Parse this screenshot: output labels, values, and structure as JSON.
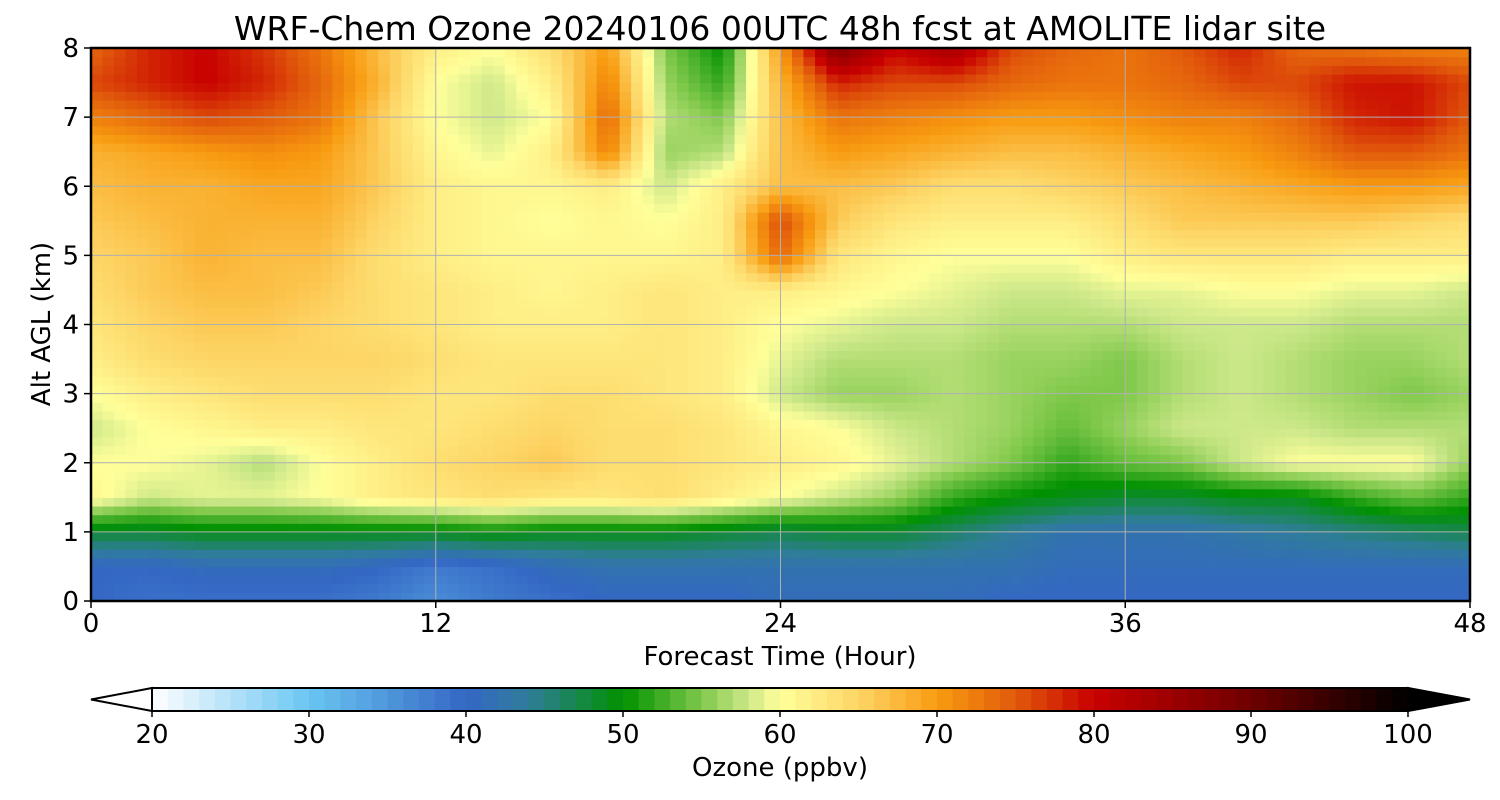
{
  "chart_data": {
    "type": "heatmap",
    "title": "WRF-Chem Ozone  20240106 00UTC 48h fcst at AMOLITE lidar site",
    "xlabel": "Forecast Time (Hour)",
    "ylabel": "Alt AGL (km)",
    "xlim": [
      0,
      48
    ],
    "ylim": [
      0,
      8
    ],
    "x_ticks": [
      0,
      12,
      24,
      36,
      48
    ],
    "y_ticks": [
      0,
      1,
      2,
      3,
      4,
      5,
      6,
      7,
      8
    ],
    "grid": true,
    "colorbar": {
      "label": "Ozone  (ppbv)",
      "range": [
        20,
        100
      ],
      "ticks": [
        20,
        30,
        40,
        50,
        60,
        70,
        80,
        90,
        100
      ],
      "extend": "both",
      "stops": [
        [
          20,
          "#ffffff"
        ],
        [
          30,
          "#6ac6f2"
        ],
        [
          40,
          "#3467c4"
        ],
        [
          44,
          "#2f7d9a"
        ],
        [
          50,
          "#009100"
        ],
        [
          55,
          "#7fc84a"
        ],
        [
          58,
          "#cde88a"
        ],
        [
          60,
          "#ffff9a"
        ],
        [
          65,
          "#fdd566"
        ],
        [
          70,
          "#f89b10"
        ],
        [
          75,
          "#e15a0b"
        ],
        [
          80,
          "#c80000"
        ],
        [
          90,
          "#6e0000"
        ],
        [
          100,
          "#000000"
        ]
      ]
    },
    "hours": [
      0,
      2,
      4,
      6,
      8,
      10,
      12,
      14,
      16,
      18,
      20,
      22,
      24,
      26,
      28,
      30,
      32,
      34,
      36,
      38,
      40,
      42,
      44,
      46,
      48
    ],
    "altitudes_km": [
      0,
      0.5,
      1,
      1.5,
      2,
      2.5,
      3,
      3.5,
      4,
      4.5,
      5,
      5.5,
      6,
      6.5,
      7,
      7.5,
      8
    ],
    "ozone_ppbv": [
      [
        40,
        39,
        39,
        39,
        39,
        38,
        36,
        38,
        39,
        40,
        40,
        40,
        41,
        41,
        41,
        41,
        40,
        40,
        40,
        40,
        40,
        40,
        40,
        40,
        40
      ],
      [
        40,
        40,
        41,
        41,
        41,
        40,
        38,
        39,
        41,
        42,
        42,
        42,
        42,
        42,
        42,
        42,
        42,
        41,
        41,
        41,
        41,
        41,
        41,
        41,
        41
      ],
      [
        48,
        48,
        49,
        49,
        49,
        49,
        49,
        50,
        49,
        49,
        49,
        48,
        47,
        48,
        48,
        46,
        44,
        42,
        42,
        42,
        43,
        44,
        45,
        46,
        47
      ],
      [
        61,
        58,
        59,
        59,
        60,
        62,
        63,
        64,
        63,
        63,
        64,
        62,
        60,
        58,
        56,
        52,
        50,
        49,
        48,
        48,
        49,
        49,
        52,
        54,
        52
      ],
      [
        60,
        60,
        59,
        57,
        60,
        62,
        64,
        65,
        66,
        64,
        64,
        63,
        62,
        61,
        59,
        57,
        55,
        52,
        54,
        55,
        58,
        60,
        60,
        60,
        56
      ],
      [
        58,
        60,
        61,
        62,
        62,
        63,
        63,
        64,
        65,
        64,
        64,
        63,
        61,
        60,
        58,
        57,
        56,
        54,
        56,
        58,
        58,
        58,
        57,
        57,
        57
      ],
      [
        60,
        62,
        63,
        64,
        64,
        64,
        63,
        63,
        64,
        64,
        63,
        62,
        58,
        56,
        56,
        57,
        56,
        55,
        55,
        57,
        58,
        57,
        56,
        55,
        56
      ],
      [
        62,
        64,
        65,
        65,
        65,
        65,
        64,
        63,
        63,
        63,
        63,
        62,
        59,
        57,
        57,
        57,
        56,
        56,
        55,
        57,
        58,
        57,
        56,
        56,
        57
      ],
      [
        63,
        65,
        66,
        66,
        65,
        64,
        63,
        62,
        62,
        62,
        63,
        62,
        60,
        59,
        58,
        58,
        57,
        57,
        57,
        58,
        58,
        58,
        57,
        57,
        57
      ],
      [
        64,
        66,
        67,
        67,
        66,
        64,
        63,
        62,
        61,
        62,
        63,
        62,
        62,
        61,
        60,
        59,
        58,
        58,
        59,
        59,
        60,
        60,
        59,
        59,
        58
      ],
      [
        65,
        66,
        68,
        67,
        67,
        64,
        62,
        61,
        61,
        61,
        61,
        62,
        74,
        63,
        61,
        60,
        60,
        60,
        62,
        63,
        63,
        63,
        62,
        62,
        62
      ],
      [
        66,
        67,
        68,
        68,
        68,
        65,
        62,
        61,
        60,
        61,
        60,
        62,
        76,
        66,
        63,
        62,
        62,
        62,
        64,
        66,
        66,
        66,
        66,
        65,
        64
      ],
      [
        67,
        68,
        68,
        69,
        69,
        66,
        62,
        61,
        61,
        62,
        58,
        62,
        67,
        67,
        66,
        64,
        64,
        65,
        66,
        67,
        68,
        69,
        70,
        70,
        69
      ],
      [
        68,
        69,
        70,
        71,
        70,
        66,
        61,
        59,
        62,
        72,
        56,
        57,
        67,
        70,
        69,
        68,
        67,
        67,
        68,
        69,
        70,
        72,
        75,
        75,
        73
      ],
      [
        72,
        74,
        76,
        75,
        73,
        66,
        60,
        58,
        60,
        74,
        57,
        55,
        67,
        73,
        72,
        71,
        70,
        70,
        71,
        72,
        72,
        74,
        78,
        79,
        75
      ],
      [
        76,
        78,
        80,
        78,
        74,
        68,
        60,
        58,
        62,
        72,
        56,
        52,
        68,
        78,
        76,
        76,
        74,
        73,
        73,
        74,
        76,
        76,
        79,
        79,
        76
      ],
      [
        74,
        78,
        80,
        77,
        73,
        67,
        62,
        60,
        64,
        70,
        55,
        50,
        70,
        88,
        80,
        84,
        76,
        74,
        73,
        75,
        78,
        74,
        73,
        72,
        72
      ]
    ]
  }
}
